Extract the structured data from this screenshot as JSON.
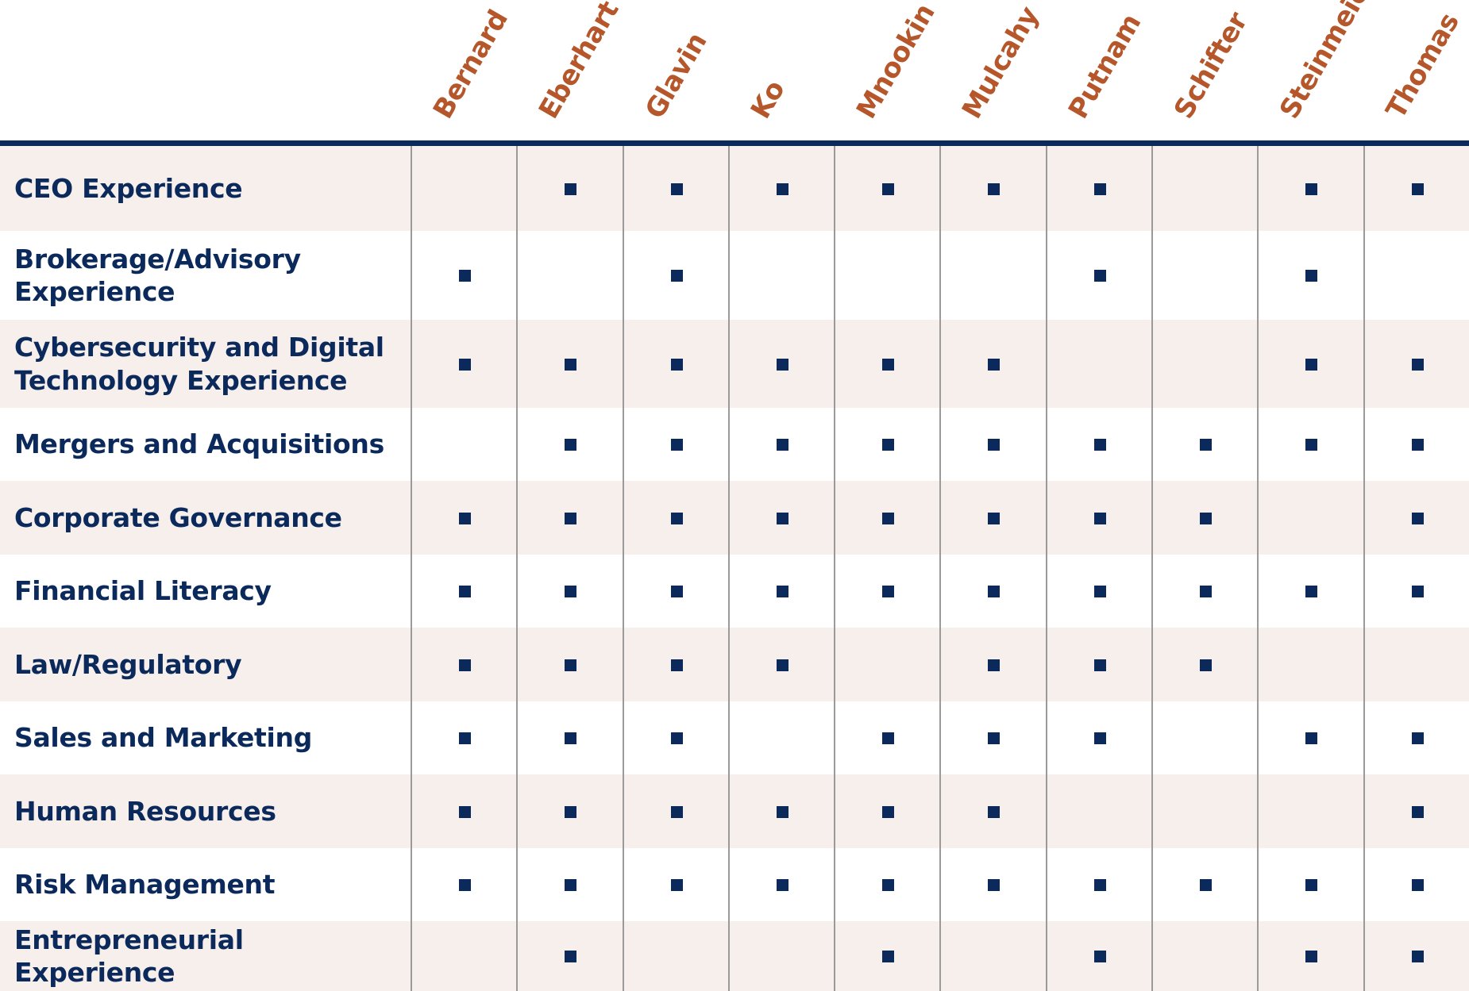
{
  "colors": {
    "header_text": "#b5572a",
    "row_text": "#0b2a5b",
    "rule": "#0b2a5b",
    "mark": "#0b2a5b",
    "row_shade": "#f6efec",
    "row_plain": "#ffffff",
    "gridline": "#9a9a9a"
  },
  "mark_icon": "filled-square-icon",
  "directors": [
    "Bernard",
    "Eberhart",
    "Glavin",
    "Ko",
    "Mnookin",
    "Mulcahy",
    "Putnam",
    "Schifter",
    "Steinmeier",
    "Thomas"
  ],
  "skills": [
    {
      "label": "CEO Experience",
      "marks": [
        0,
        1,
        1,
        1,
        1,
        1,
        1,
        0,
        1,
        1
      ]
    },
    {
      "label": "Brokerage/Advisory Experience",
      "marks": [
        1,
        0,
        1,
        0,
        0,
        0,
        1,
        0,
        1,
        0
      ]
    },
    {
      "label": "Cybersecurity and Digital Technology Experience",
      "marks": [
        1,
        1,
        1,
        1,
        1,
        1,
        0,
        0,
        1,
        1
      ]
    },
    {
      "label": "Mergers and Acquisitions",
      "marks": [
        0,
        1,
        1,
        1,
        1,
        1,
        1,
        1,
        1,
        1
      ]
    },
    {
      "label": "Corporate Governance",
      "marks": [
        1,
        1,
        1,
        1,
        1,
        1,
        1,
        1,
        0,
        1
      ]
    },
    {
      "label": "Financial Literacy",
      "marks": [
        1,
        1,
        1,
        1,
        1,
        1,
        1,
        1,
        1,
        1
      ]
    },
    {
      "label": "Law/Regulatory",
      "marks": [
        1,
        1,
        1,
        1,
        0,
        1,
        1,
        1,
        0,
        0
      ]
    },
    {
      "label": "Sales and Marketing",
      "marks": [
        1,
        1,
        1,
        0,
        1,
        1,
        1,
        0,
        1,
        1
      ]
    },
    {
      "label": "Human Resources",
      "marks": [
        1,
        1,
        1,
        1,
        1,
        1,
        0,
        0,
        0,
        1
      ]
    },
    {
      "label": "Risk Management",
      "marks": [
        1,
        1,
        1,
        1,
        1,
        1,
        1,
        1,
        1,
        1
      ]
    },
    {
      "label": "Entrepreneurial Experience",
      "marks": [
        0,
        1,
        0,
        0,
        1,
        0,
        1,
        0,
        1,
        1
      ]
    }
  ]
}
